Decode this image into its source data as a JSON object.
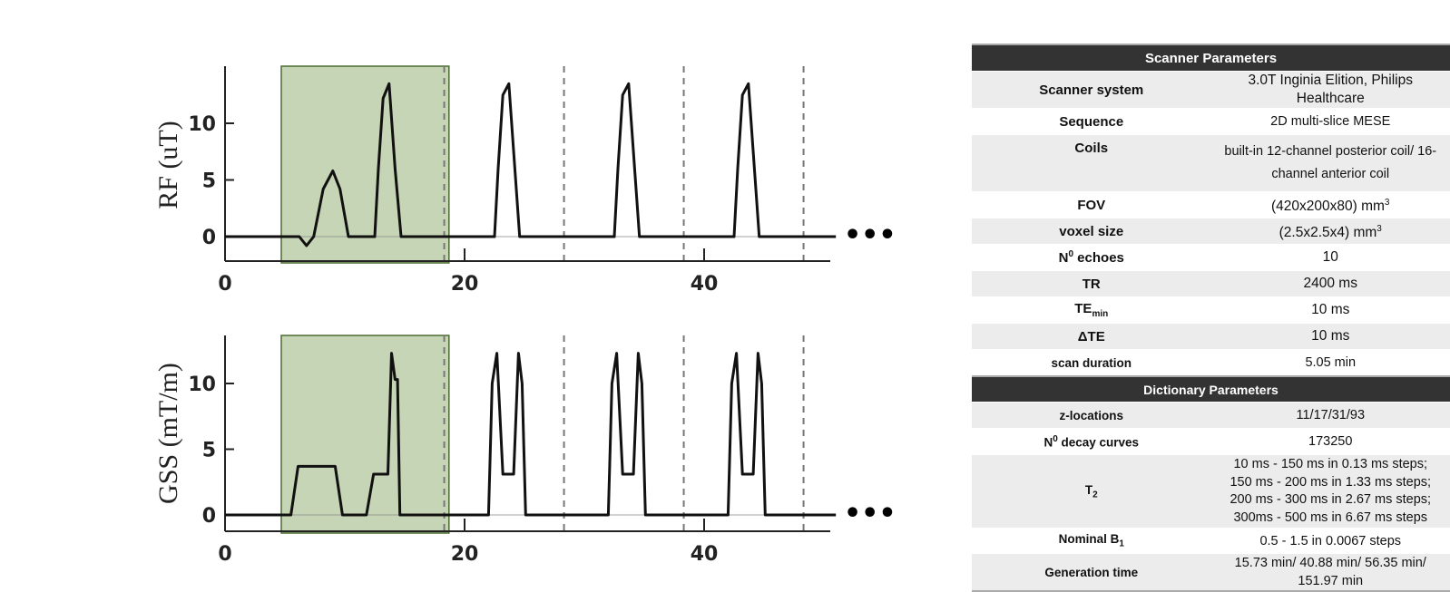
{
  "chart_data": [
    {
      "type": "line",
      "ylabel": "RF (uT)",
      "x_ticks": [
        "0",
        "20",
        "40"
      ],
      "y_ticks": [
        "0",
        "5",
        "10"
      ],
      "xlim": [
        0,
        51
      ],
      "ylim": [
        -2,
        14.5
      ],
      "highlight_x_range": [
        5,
        19
      ],
      "dashed_lines_x": [
        18.3,
        28.3,
        38.3,
        48.3
      ],
      "continuation": "•••",
      "series": [
        {
          "values_x": [
            0,
            6.2,
            6.8,
            7.4,
            8.2,
            9.0,
            9.6,
            10.3,
            12.5,
            12.8,
            13.2,
            13.7,
            14.2,
            14.7,
            22.5,
            22.8,
            23.2,
            23.7,
            24.2,
            24.6,
            32.5,
            32.8,
            33.2,
            33.7,
            34.2,
            34.6,
            42.5,
            42.8,
            43.2,
            43.7,
            44.2,
            44.6,
            51
          ],
          "values_y": [
            0,
            0,
            -0.8,
            0,
            4.2,
            5.8,
            4.2,
            0,
            0,
            6,
            12.2,
            13.5,
            6,
            0,
            0,
            6,
            12.5,
            13.5,
            6,
            0,
            0,
            6,
            12.5,
            13.5,
            6,
            0,
            0,
            6,
            12.5,
            13.5,
            6,
            0,
            0
          ]
        }
      ]
    },
    {
      "type": "line",
      "ylabel": "GSS (mT/m)",
      "x_ticks": [
        "0",
        "20",
        "40"
      ],
      "y_ticks": [
        "0",
        "5",
        "10"
      ],
      "xlim": [
        0,
        51
      ],
      "ylim": [
        -1.2,
        14
      ],
      "highlight_x_range": [
        5,
        19
      ],
      "dashed_lines_x": [
        18.3,
        28.3,
        38.3,
        48.3
      ],
      "continuation": "•••",
      "series": [
        {
          "values_x": [
            0,
            5.5,
            6.1,
            9.2,
            9.8,
            11.8,
            12.4,
            13.6,
            13.9,
            14.2,
            14.4,
            14.6,
            22,
            22.3,
            22.7,
            23.2,
            24.1,
            24.5,
            24.8,
            25.1,
            32,
            32.3,
            32.7,
            33.2,
            34.1,
            34.5,
            34.8,
            35.1,
            42,
            42.3,
            42.7,
            43.2,
            44.1,
            44.5,
            44.8,
            45.1,
            51
          ],
          "values_y": [
            0,
            0,
            3.7,
            3.7,
            0,
            0,
            3.1,
            3.1,
            12.3,
            10.3,
            10.3,
            0,
            0,
            10,
            12.3,
            3.1,
            3.1,
            12.3,
            10,
            0,
            0,
            10,
            12.3,
            3.1,
            3.1,
            12.3,
            10,
            0,
            0,
            10,
            12.3,
            3.1,
            3.1,
            12.3,
            10,
            0,
            0
          ]
        }
      ]
    }
  ],
  "table": {
    "scanner_header": "Scanner Parameters",
    "scanner_rows": [
      {
        "key": "Scanner system",
        "value": "3.0T Inginia Elition, Philips Healthcare"
      },
      {
        "key": "Sequence",
        "value": "2D multi-slice MESE"
      },
      {
        "key": "Coils",
        "value": "built-in 12-channel posterior coil/ 16-channel anterior coil"
      },
      {
        "key": "FOV",
        "value": "(420x200x80) mm",
        "value_sup": "3"
      },
      {
        "key": "voxel size",
        "value": "(2.5x2.5x4) mm",
        "value_sup": "3"
      },
      {
        "key": "N",
        "key_sup": "0",
        "key_rest": " echoes",
        "value": "10"
      },
      {
        "key": "TR",
        "value": "2400 ms"
      },
      {
        "key": "TE",
        "key_sub": "min",
        "value": "10 ms"
      },
      {
        "key": "ΔTE",
        "value": "10 ms"
      },
      {
        "key": "scan duration",
        "value": "5.05 min"
      }
    ],
    "dictionary_header": "Dictionary Parameters",
    "dictionary_rows": [
      {
        "key": "z-locations",
        "value": "11/17/31/93"
      },
      {
        "key": "N",
        "key_sup": "0",
        "key_rest": " decay curves",
        "value": "173250"
      },
      {
        "key": "T",
        "key_sub": "2",
        "value_lines": [
          "10 ms - 150 ms in 0.13 ms steps;",
          "150 ms - 200 ms in 1.33 ms steps;",
          "200 ms - 300 ms in 2.67 ms steps;",
          "300ms - 500 ms in 6.67 ms steps"
        ]
      },
      {
        "key": "Nominal B",
        "key_sub": "1",
        "value": "0.5 - 1.5 in 0.0067 steps"
      },
      {
        "key": "Generation time",
        "value": "15.73 min/ 40.88 min/ 56.35 min/ 151.97 min"
      }
    ]
  },
  "colors": {
    "highlight_fill": "#c6d5b5",
    "highlight_stroke": "#4a6b30",
    "table_header": "#333333",
    "row_shade": "#ececec",
    "dash": "#777777"
  }
}
